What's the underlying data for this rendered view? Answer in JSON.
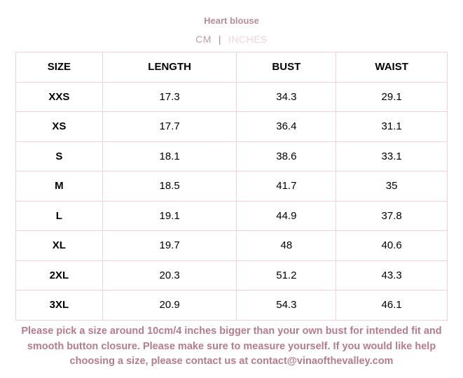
{
  "title": "Heart blouse",
  "units": {
    "cm": "CM",
    "separator": "|",
    "inches": "INCHES",
    "active": "CM"
  },
  "table": {
    "headers": [
      "SIZE",
      "LENGTH",
      "BUST",
      "WAIST"
    ],
    "rows": [
      [
        "XXS",
        "17.3",
        "34.3",
        "29.1"
      ],
      [
        "XS",
        "17.7",
        "36.4",
        "31.1"
      ],
      [
        "S",
        "18.1",
        "38.6",
        "33.1"
      ],
      [
        "M",
        "18.5",
        "41.7",
        "35"
      ],
      [
        "L",
        "19.1",
        "44.9",
        "37.8"
      ],
      [
        "XL",
        "19.7",
        "48",
        "40.6"
      ],
      [
        "2XL",
        "20.3",
        "51.2",
        "43.3"
      ],
      [
        "3XL",
        "20.9",
        "54.3",
        "46.1"
      ]
    ]
  },
  "note": "Please pick a size around 10cm/4 inches bigger than your own bust for intended fit and smooth button closure. Please make sure to measure yourself. If you would like help choosing a size, please contact us at contact@vinaofthevalley.com",
  "colors": {
    "title": "#b98c9c",
    "border": "#f5cfdc",
    "inactive_unit": "#f6d0dc",
    "note": "#b47c8c"
  }
}
